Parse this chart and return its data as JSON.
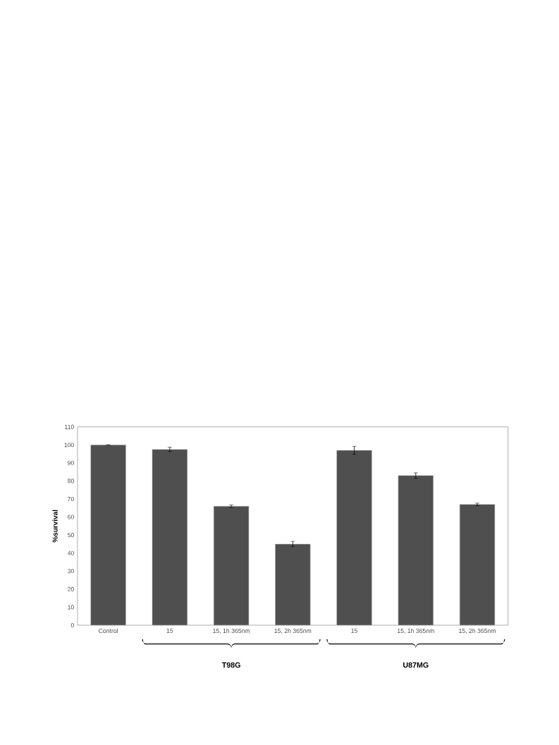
{
  "chart_data": {
    "type": "bar",
    "ylabel": "%survival",
    "categories": [
      "Control",
      "15",
      "15, 1h 365nm",
      "15, 2h 365nm",
      "15",
      "15, 1h 365nm",
      "15, 2h 365nm"
    ],
    "values": [
      100,
      97.5,
      66,
      45,
      97,
      83,
      67
    ],
    "errors": [
      null,
      1.2,
      0.7,
      1.5,
      2.2,
      1.5,
      0.7
    ],
    "color": "#4f4f4f",
    "ylim": [
      0,
      110
    ],
    "yticks": [
      0,
      10,
      20,
      30,
      40,
      50,
      60,
      70,
      80,
      90,
      100,
      110
    ],
    "annotations": [
      "T98G",
      "U87MG"
    ]
  }
}
